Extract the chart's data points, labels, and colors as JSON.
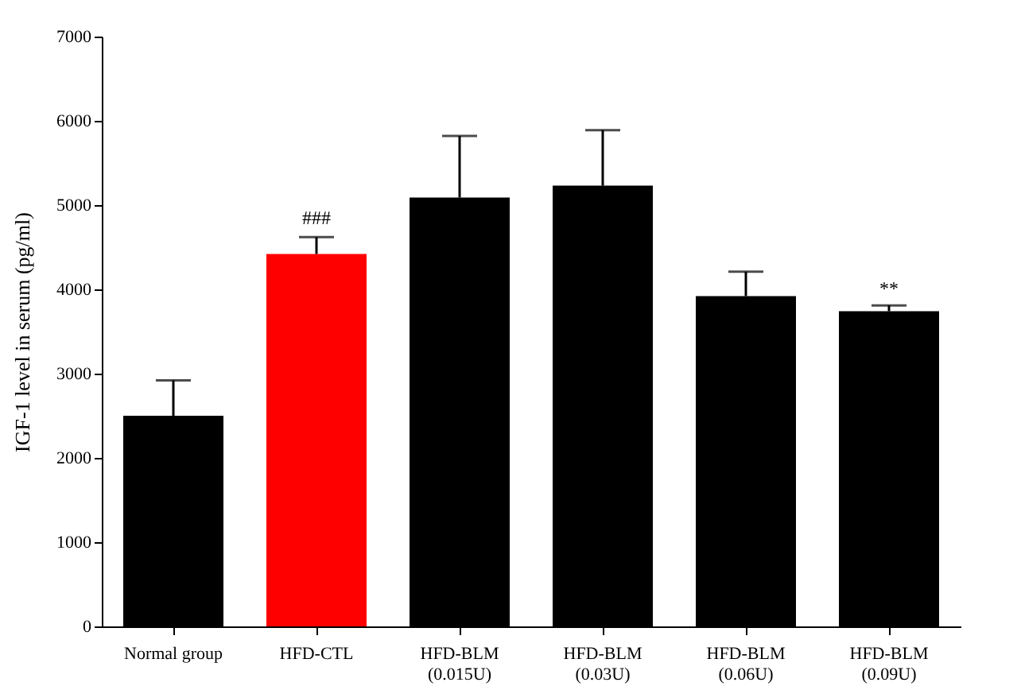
{
  "chart_data": {
    "type": "bar",
    "ylabel": "IGF-1  level in serum (pg/ml)",
    "categories": [
      "Normal group",
      "HFD-CTL",
      "HFD-BLM\n(0.015U)",
      "HFD-BLM\n(0.03U)",
      "HFD-BLM\n(0.06U)",
      "HFD-BLM\n(0.09U)"
    ],
    "values": [
      2500,
      4420,
      5090,
      5230,
      3920,
      3740
    ],
    "colors": [
      "#000000",
      "#ff0000",
      "#000000",
      "#000000",
      "#000000",
      "#000000"
    ],
    "errors": [
      [
        2500,
        2920
      ],
      [
        4420,
        4620
      ],
      [
        5090,
        5820
      ],
      [
        5230,
        5890
      ],
      [
        3920,
        4210
      ],
      [
        3740,
        3810
      ]
    ],
    "annotations": [
      {
        "text": "###",
        "x": "HFD-CTL",
        "y": 4720
      },
      {
        "text": "**",
        "x": "HFD-BLM\n(0.09U)",
        "y": 3880
      }
    ],
    "ylim": [
      0,
      7000
    ],
    "yticks": [
      0,
      1000,
      2000,
      3000,
      4000,
      5000,
      6000,
      7000
    ],
    "grid": false
  }
}
